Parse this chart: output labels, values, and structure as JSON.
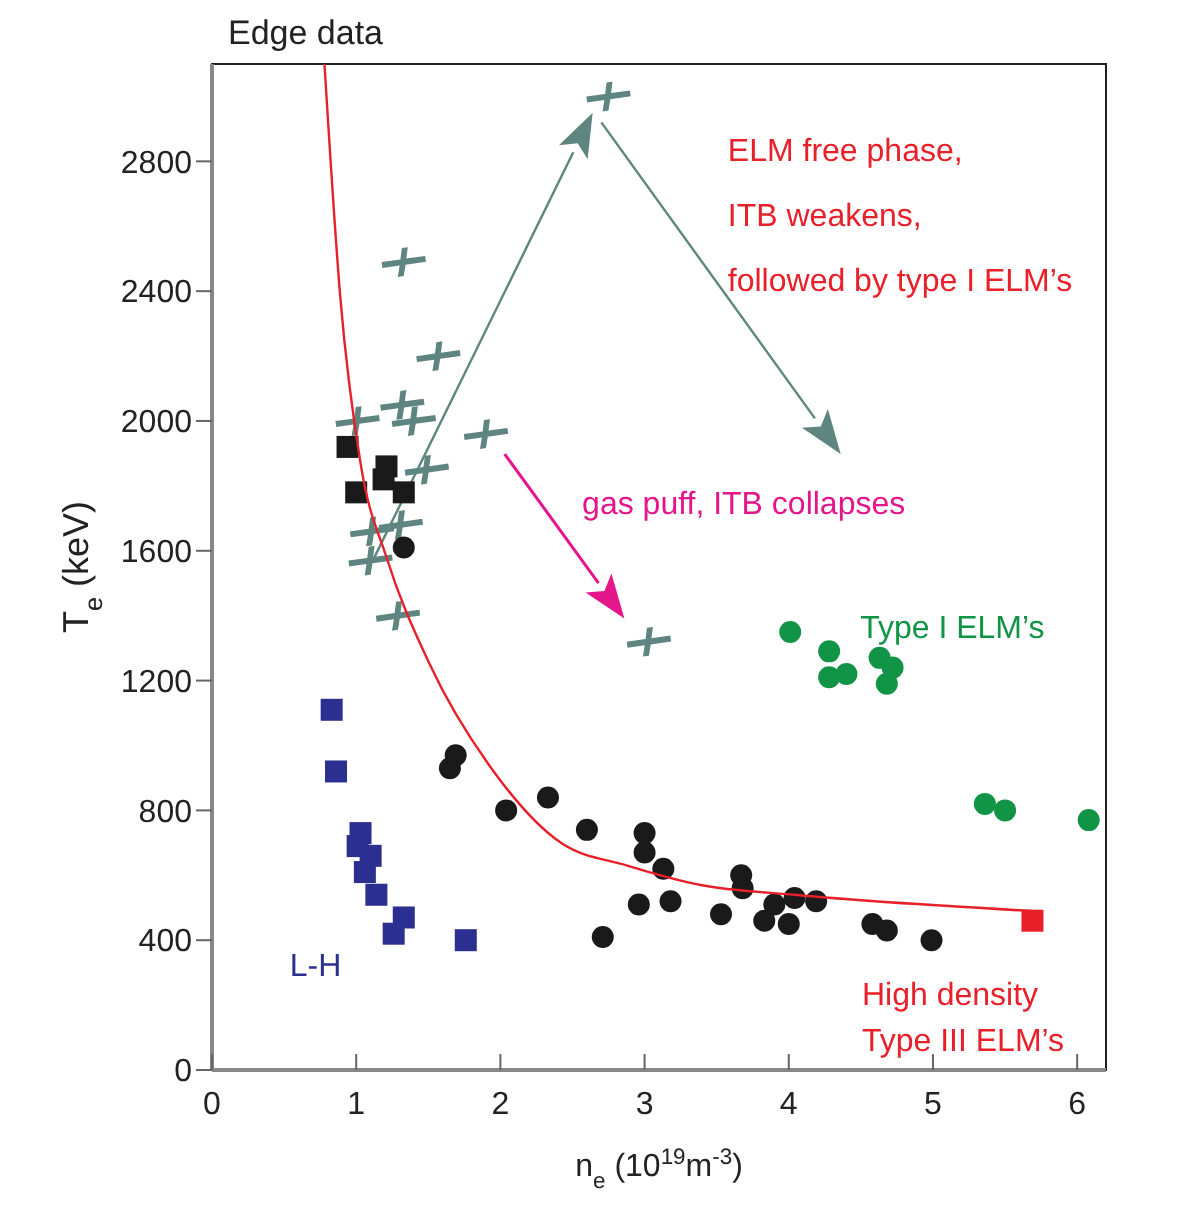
{
  "chart_data": {
    "type": "scatter",
    "title": "Edge data",
    "xlabel": "n$_{e}$ (10$^{19}$m$^{-3}$)",
    "ylabel": "T$_{e}$ (keV)",
    "xlim": [
      0,
      6.2
    ],
    "ylim": [
      0,
      3100
    ],
    "xticks": [
      0,
      1,
      2,
      3,
      4,
      5,
      6
    ],
    "yticks": [
      0,
      400,
      800,
      1200,
      1600,
      2000,
      2400,
      2800
    ],
    "grid": false,
    "series": [
      {
        "color": "#5f8580",
        "marker": "cross",
        "x": [
          2.75,
          1.33,
          1.57,
          1.01,
          1.32,
          1.4,
          1.9,
          1.49,
          1.11,
          1.31,
          1.1,
          1.29,
          3.03
        ],
        "values": [
          3000,
          2490,
          2200,
          2000,
          2050,
          2000,
          1960,
          1850,
          1660,
          1680,
          1570,
          1400,
          1320
        ]
      },
      {
        "color": "#1a1a1a",
        "marker": "square",
        "x": [
          0.94,
          1.21,
          1.19,
          1.0,
          1.33
        ],
        "values": [
          1920,
          1860,
          1820,
          1780,
          1780
        ]
      },
      {
        "color": "#1a1a1a",
        "marker": "circle",
        "x": [
          1.33,
          1.69,
          1.65,
          2.04,
          2.33,
          2.6,
          3.0,
          3.0,
          3.13,
          2.96,
          3.18,
          2.71,
          3.53,
          3.67,
          3.68,
          3.83,
          3.9,
          4.0,
          4.04,
          4.19,
          4.58,
          4.68,
          4.99
        ],
        "values": [
          1610,
          970,
          930,
          800,
          840,
          740,
          730,
          670,
          620,
          510,
          520,
          410,
          480,
          600,
          560,
          460,
          510,
          450,
          530,
          520,
          450,
          430,
          400
        ]
      },
      {
        "color": "#129447",
        "marker": "circle",
        "x": [
          4.01,
          4.28,
          4.28,
          4.4,
          4.63,
          4.72,
          4.68,
          5.36,
          5.5,
          6.08
        ],
        "values": [
          1350,
          1290,
          1210,
          1220,
          1270,
          1240,
          1190,
          820,
          800,
          770
        ]
      },
      {
        "color": "#2b2f8f",
        "marker": "square",
        "x": [
          0.83,
          0.86,
          1.03,
          1.01,
          1.1,
          1.06,
          1.14,
          1.33,
          1.26,
          1.76
        ],
        "values": [
          1110,
          920,
          730,
          690,
          660,
          610,
          540,
          470,
          420,
          400
        ]
      },
      {
        "color": "#e8202a",
        "marker": "square",
        "x": [
          5.69
        ],
        "values": [
          460
        ]
      },
      {
        "type": "line",
        "color": "#e8202a",
        "marker": "none",
        "x": [
          0.78,
          0.89,
          1.03,
          1.21,
          1.51,
          1.97,
          2.42,
          2.88,
          3.39,
          4.04,
          5.69
        ],
        "values": [
          3100,
          2380,
          1870,
          1580,
          1250,
          910,
          700,
          630,
          570,
          540,
          490
        ]
      }
    ],
    "annotations": [
      "ELM free phase,",
      "ITB weakens,",
      "followed by type I ELM’s",
      "gas puff, ITB collapses",
      "Type I ELM’s",
      "High density",
      "Type III ELM’s",
      "L-H"
    ]
  }
}
